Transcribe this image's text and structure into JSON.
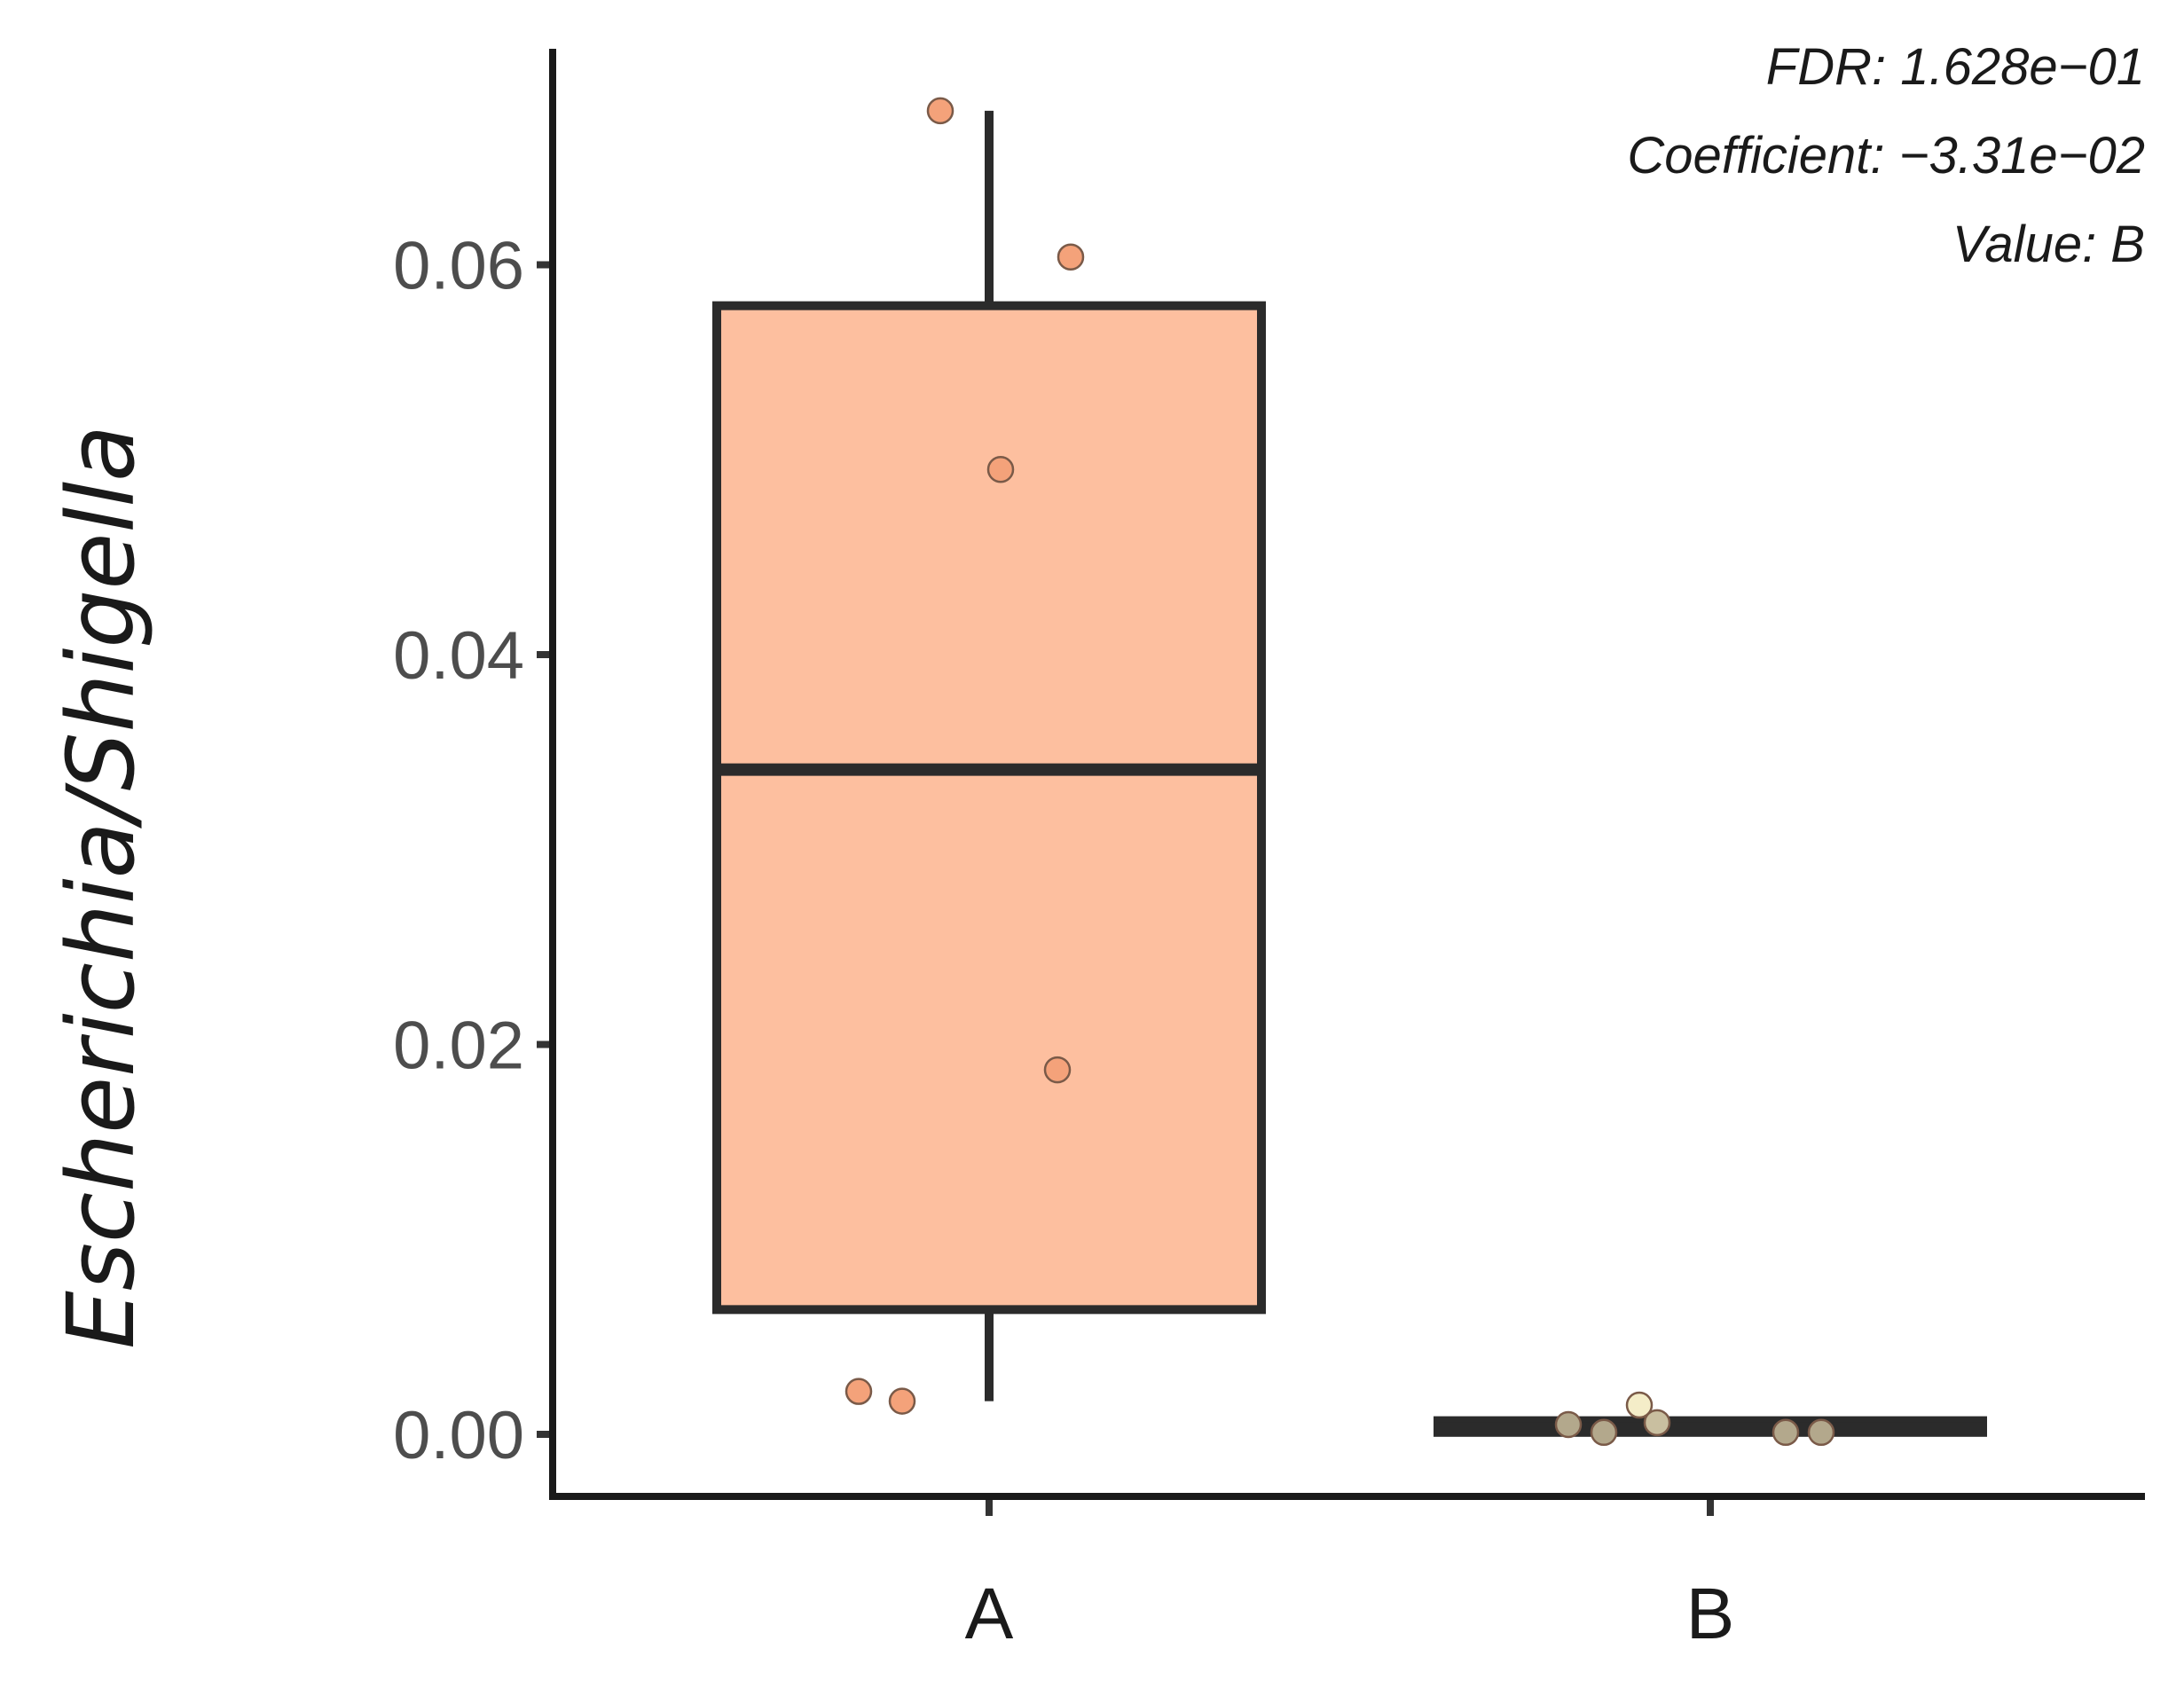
{
  "chart_data": {
    "type": "box",
    "categories": [
      "A",
      "B"
    ],
    "ylabel": "Escherichia/Shigella",
    "xlabel": "",
    "ylim": [
      -0.003,
      0.072
    ],
    "yticks": [
      0.0,
      0.02,
      0.04,
      0.06
    ],
    "ytick_labels": [
      "0.00",
      "0.02",
      "0.04",
      "0.06"
    ],
    "grid": false,
    "annotations": [
      "FDR: 1.628e−01",
      "Coefficient: −3.31e−02",
      "Value: B"
    ],
    "boxes": [
      {
        "category": "A",
        "q1": 0.0064,
        "median": 0.0341,
        "q3": 0.0579,
        "whisker_low": 0.0017,
        "whisker_high": 0.0679,
        "color": "#FDBF9F"
      },
      {
        "category": "B",
        "q1": 0.0001,
        "median": 0.0003,
        "q3": 0.0007,
        "whisker_low": 0.0,
        "whisker_high": 0.0008,
        "color": "#F3E3B3"
      }
    ],
    "points": [
      {
        "category": "A",
        "y": 0.0679,
        "color": "#F4A27A"
      },
      {
        "category": "A",
        "y": 0.0604,
        "color": "#F4A27A"
      },
      {
        "category": "A",
        "y": 0.0495,
        "color": "#F4A27A"
      },
      {
        "category": "A",
        "y": 0.0187,
        "color": "#F4A27A"
      },
      {
        "category": "A",
        "y": 0.0022,
        "color": "#F4A27A"
      },
      {
        "category": "A",
        "y": 0.0017,
        "color": "#F4A27A"
      },
      {
        "category": "B",
        "y": 0.0005,
        "color": "#B3A88C"
      },
      {
        "category": "B",
        "y": 0.0001,
        "color": "#B3A88C"
      },
      {
        "category": "B",
        "y": 0.0015,
        "color": "#F4EDC8"
      },
      {
        "category": "B",
        "y": 0.0006,
        "color": "#C9BFA0"
      },
      {
        "category": "B",
        "y": 0.0001,
        "color": "#B3A88C"
      },
      {
        "category": "B",
        "y": 0.0001,
        "color": "#B3A88C"
      }
    ]
  }
}
